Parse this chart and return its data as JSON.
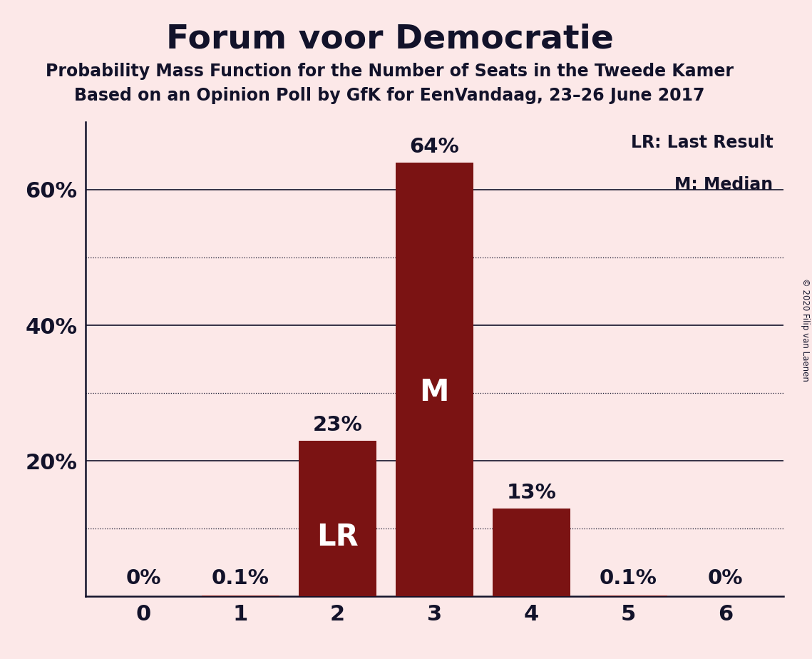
{
  "title": "Forum voor Democratie",
  "subtitle1": "Probability Mass Function for the Number of Seats in the Tweede Kamer",
  "subtitle2": "Based on an Opinion Poll by GfK for EenVandaag, 23–26 June 2017",
  "copyright": "© 2020 Filip van Laenen",
  "categories": [
    0,
    1,
    2,
    3,
    4,
    5,
    6
  ],
  "values": [
    0.0,
    0.001,
    0.23,
    0.64,
    0.13,
    0.001,
    0.0
  ],
  "bar_labels": [
    "0%",
    "0.1%",
    "23%",
    "64%",
    "13%",
    "0.1%",
    "0%"
  ],
  "bar_color": "#7b1313",
  "background_color": "#fce8e8",
  "text_color": "#12122a",
  "legend_lr_label": "LR: Last Result",
  "legend_m_label": "M: Median",
  "lr_index": 2,
  "median_index": 3,
  "ytick_positions": [
    0.2,
    0.4,
    0.6
  ],
  "ytick_labels": [
    "20%",
    "40%",
    "60%"
  ],
  "ylim": [
    0,
    0.7
  ],
  "solid_yticks": [
    0.2,
    0.4,
    0.6
  ],
  "dotted_yticks": [
    0.1,
    0.3,
    0.5
  ],
  "label_small_threshold": 0.05
}
